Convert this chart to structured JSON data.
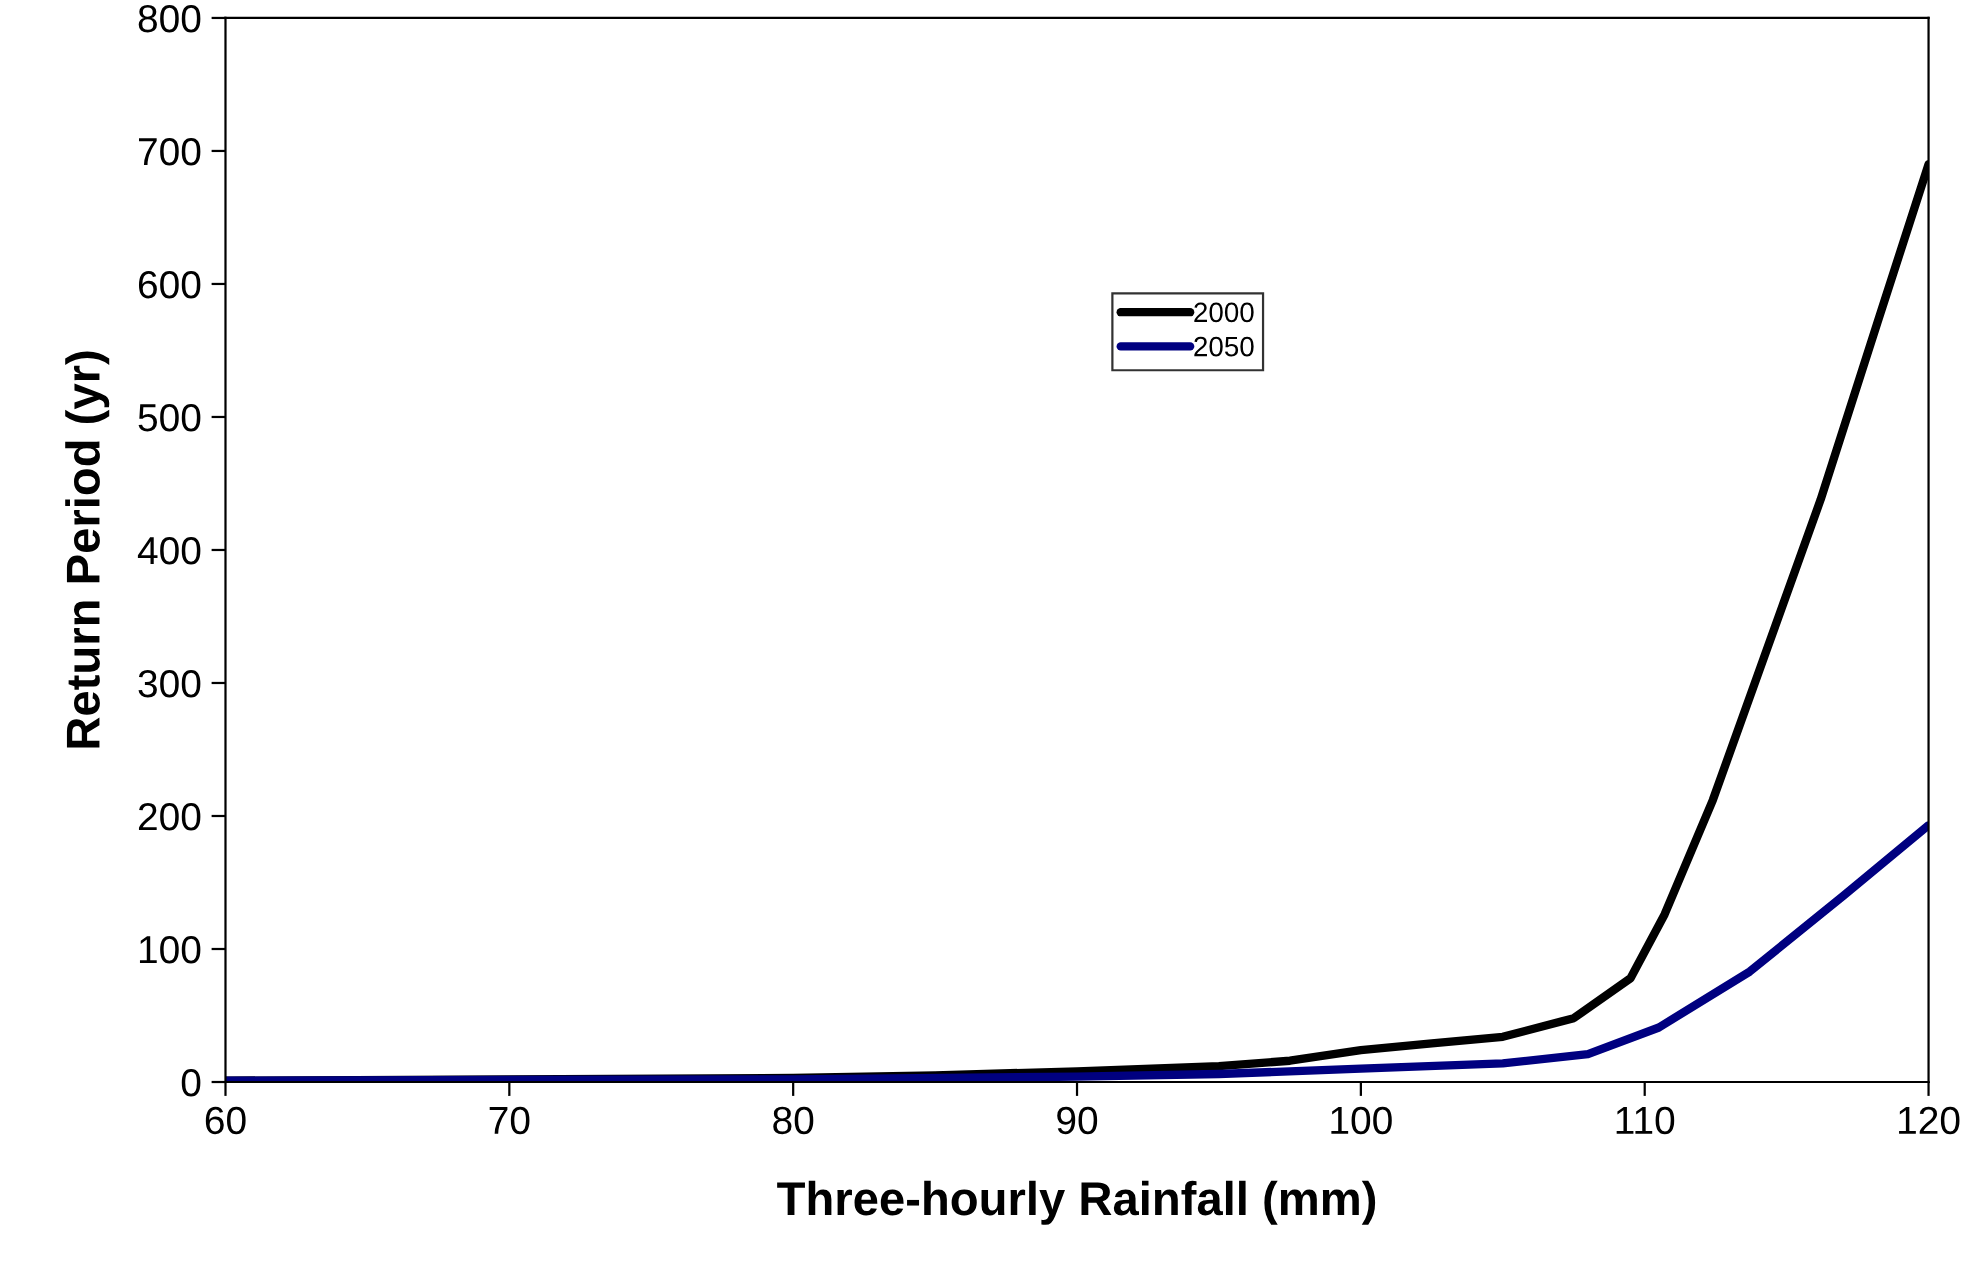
{
  "chart_data": {
    "type": "line",
    "xlabel": "Three-hourly Rainfall (mm)",
    "ylabel": "Return Period (yr)",
    "xlim": [
      60,
      120
    ],
    "xticks": [
      60,
      70,
      80,
      90,
      100,
      110,
      120
    ],
    "ylim": [
      0,
      800
    ],
    "yticks": [
      0,
      100,
      200,
      300,
      400,
      500,
      600,
      700,
      800
    ],
    "grid": false,
    "legend": "top",
    "marker": "none",
    "line_style": "solid",
    "series": [
      {
        "name": "2000",
        "color": "#000000",
        "x": [
          60,
          70,
          80,
          85,
          90,
          95,
          97.5,
          100,
          102.5,
          105,
          107.5,
          109.5,
          110.7,
          112.4,
          114.2,
          116.2,
          118.2,
          120
        ],
        "values": [
          1,
          2,
          3,
          5,
          8,
          12,
          16,
          24,
          29,
          34,
          48,
          78,
          126,
          212,
          319,
          438,
          571,
          690
        ]
      },
      {
        "name": "2050",
        "color": "#000080",
        "x": [
          60,
          70,
          80,
          90,
          95,
          100,
          105,
          108,
          110.5,
          113.7,
          117,
          120
        ],
        "values": [
          1,
          1.5,
          2,
          4,
          6,
          10,
          14,
          21,
          41,
          83,
          140,
          193
        ]
      }
    ]
  }
}
